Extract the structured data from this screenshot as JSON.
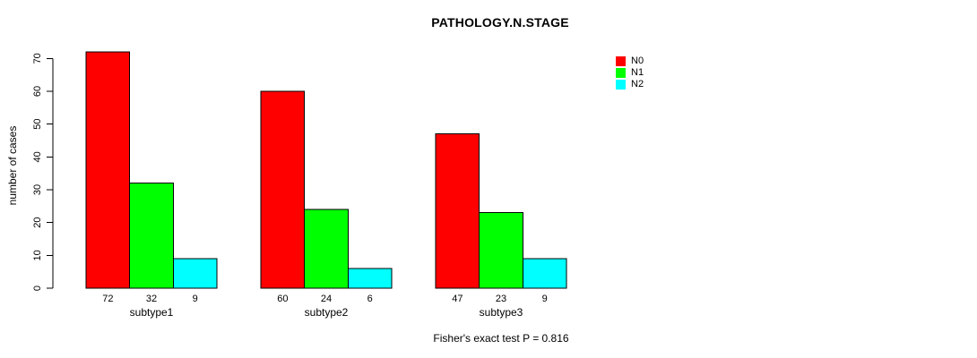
{
  "title": "PATHOLOGY.N.STAGE",
  "footer": "Fisher's exact test P = 0.816",
  "colors": {
    "n0": "#FF0000",
    "n1": "#00FF00",
    "n2": "#00FFFF",
    "axis": "#000000",
    "background": "#FFFFFF"
  },
  "chart_data": {
    "type": "bar",
    "title": "PATHOLOGY.N.STAGE",
    "xlabel": "",
    "ylabel": "number of cases",
    "categories": [
      "subtype1",
      "subtype2",
      "subtype3"
    ],
    "series": [
      {
        "name": "N0",
        "color": "#FF0000",
        "values": [
          72,
          60,
          47
        ]
      },
      {
        "name": "N1",
        "color": "#00FF00",
        "values": [
          32,
          24,
          23
        ]
      },
      {
        "name": "N2",
        "color": "#00FFFF",
        "values": [
          9,
          6,
          9
        ]
      }
    ],
    "bar_value_labels": [
      [
        "72",
        "32",
        "9"
      ],
      [
        "60",
        "24",
        "6"
      ],
      [
        "47",
        "23",
        "9"
      ]
    ],
    "ylim": [
      0,
      70
    ],
    "yticks": [
      "0",
      "10",
      "20",
      "30",
      "40",
      "50",
      "60",
      "70"
    ],
    "grid": false,
    "legend_position": "top-right",
    "legend_entries": [
      "N0",
      "N1",
      "N2"
    ],
    "annotation": "Fisher's exact test P = 0.816"
  }
}
